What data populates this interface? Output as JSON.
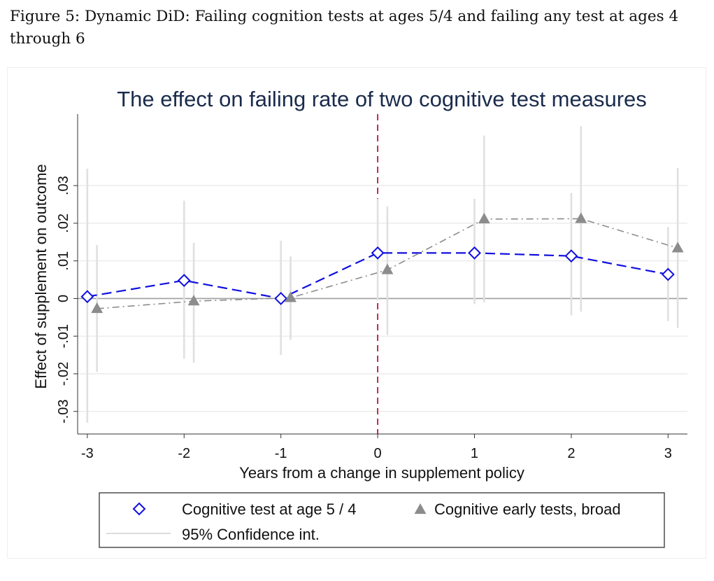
{
  "caption": "Figure 5: Dynamic DiD: Failing cognition tests at ages 5/4 and failing any test at ages 4 through 6",
  "colors": {
    "series1": "#1010e0",
    "series2": "#8c8c8c",
    "ci": "#e0e0e0",
    "event_line": "#c0143c",
    "zero_line": "#a0a0a0",
    "grid": "#ececec",
    "title": "#1a2b4c"
  },
  "chart_data": {
    "type": "line",
    "title": "The effect on failing rate of two cognitive test measures",
    "xlabel": "Years from a change in supplement policy",
    "ylabel": "Effect of supplement on outcome",
    "x_ticks": [
      "-3",
      "-2",
      "-1",
      "0",
      "1",
      "2",
      "3"
    ],
    "y_ticks": [
      "-.03",
      "-.02",
      "-.01",
      "0",
      ".01",
      ".02",
      ".03"
    ],
    "xlim": [
      -3.1,
      3.2
    ],
    "ylim": [
      -0.036,
      0.049
    ],
    "grid": true,
    "event_line_x": 0,
    "legend_position": "bottom",
    "series": [
      {
        "name": "Cognitive test at age 5 / 4",
        "marker": "diamond-hollow",
        "line_style": "dashed",
        "x_offset": 0,
        "x": [
          -3,
          -2,
          -1,
          0,
          1,
          2,
          3
        ],
        "y": [
          0.0005,
          0.0048,
          0.0,
          0.0121,
          0.0121,
          0.0113,
          0.0064
        ],
        "ci_low": [
          -0.033,
          -0.016,
          -0.015,
          -0.0005,
          -0.0015,
          -0.0045,
          -0.006
        ],
        "ci_high": [
          0.0345,
          0.026,
          0.0153,
          0.0265,
          0.0265,
          0.028,
          0.019
        ]
      },
      {
        "name": "Cognitive early tests, broad",
        "marker": "triangle-filled",
        "line_style": "dash-dot",
        "x_offset": 0.1,
        "x": [
          -3,
          -2,
          -1,
          0,
          1,
          2,
          3
        ],
        "y": [
          -0.0027,
          -0.0007,
          0.0002,
          0.0076,
          0.0211,
          0.0212,
          0.0134
        ],
        "ci_low": [
          -0.0195,
          -0.017,
          -0.011,
          -0.0097,
          -0.001,
          -0.0035,
          -0.0078
        ],
        "ci_high": [
          0.0142,
          0.0148,
          0.0112,
          0.0245,
          0.0433,
          0.0458,
          0.0347
        ]
      }
    ],
    "legend": [
      "Cognitive test at age 5 / 4",
      "Cognitive early tests, broad",
      "95% Confidence int."
    ]
  }
}
